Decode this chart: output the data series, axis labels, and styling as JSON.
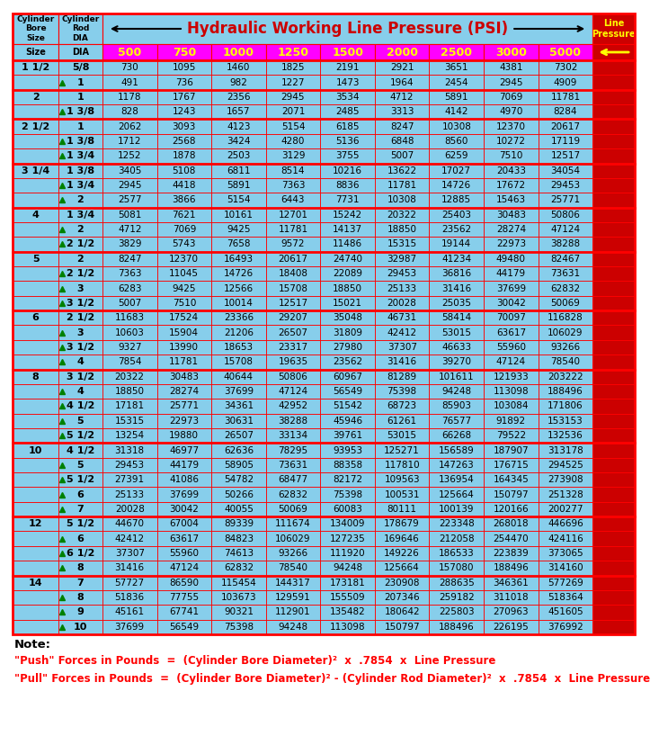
{
  "title": "Hydraulic Working Line Pressure (PSI)",
  "pressures": [
    "500",
    "750",
    "1000",
    "1250",
    "1500",
    "2000",
    "2500",
    "3000",
    "5000"
  ],
  "rows": [
    [
      "1 1/2",
      "5/8",
      730,
      1095,
      1460,
      1825,
      2191,
      2921,
      3651,
      4381,
      7302
    ],
    [
      "",
      "1",
      491,
      736,
      982,
      1227,
      1473,
      1964,
      2454,
      2945,
      4909
    ],
    [
      "2",
      "1",
      1178,
      1767,
      2356,
      2945,
      3534,
      4712,
      5891,
      7069,
      11781
    ],
    [
      "",
      "1 3/8",
      828,
      1243,
      1657,
      2071,
      2485,
      3313,
      4142,
      4970,
      8284
    ],
    [
      "2 1/2",
      "1",
      2062,
      3093,
      4123,
      5154,
      6185,
      8247,
      10308,
      12370,
      20617
    ],
    [
      "",
      "1 3/8",
      1712,
      2568,
      3424,
      4280,
      5136,
      6848,
      8560,
      10272,
      17119
    ],
    [
      "",
      "1 3/4",
      1252,
      1878,
      2503,
      3129,
      3755,
      5007,
      6259,
      7510,
      12517
    ],
    [
      "3 1/4",
      "1 3/8",
      3405,
      5108,
      6811,
      8514,
      10216,
      13622,
      17027,
      20433,
      34054
    ],
    [
      "",
      "1 3/4",
      2945,
      4418,
      5891,
      7363,
      8836,
      11781,
      14726,
      17672,
      29453
    ],
    [
      "",
      "2",
      2577,
      3866,
      5154,
      6443,
      7731,
      10308,
      12885,
      15463,
      25771
    ],
    [
      "4",
      "1 3/4",
      5081,
      7621,
      10161,
      12701,
      15242,
      20322,
      25403,
      30483,
      50806
    ],
    [
      "",
      "2",
      4712,
      7069,
      9425,
      11781,
      14137,
      18850,
      23562,
      28274,
      47124
    ],
    [
      "",
      "2 1/2",
      3829,
      5743,
      7658,
      9572,
      11486,
      15315,
      19144,
      22973,
      38288
    ],
    [
      "5",
      "2",
      8247,
      12370,
      16493,
      20617,
      24740,
      32987,
      41234,
      49480,
      82467
    ],
    [
      "",
      "2 1/2",
      7363,
      11045,
      14726,
      18408,
      22089,
      29453,
      36816,
      44179,
      73631
    ],
    [
      "",
      "3",
      6283,
      9425,
      12566,
      15708,
      18850,
      25133,
      31416,
      37699,
      62832
    ],
    [
      "",
      "3 1/2",
      5007,
      7510,
      10014,
      12517,
      15021,
      20028,
      25035,
      30042,
      50069
    ],
    [
      "6",
      "2 1/2",
      11683,
      17524,
      23366,
      29207,
      35048,
      46731,
      58414,
      70097,
      116828
    ],
    [
      "",
      "3",
      10603,
      15904,
      21206,
      26507,
      31809,
      42412,
      53015,
      63617,
      106029
    ],
    [
      "",
      "3 1/2",
      9327,
      13990,
      18653,
      23317,
      27980,
      37307,
      46633,
      55960,
      93266
    ],
    [
      "",
      "4",
      7854,
      11781,
      15708,
      19635,
      23562,
      31416,
      39270,
      47124,
      78540
    ],
    [
      "8",
      "3 1/2",
      20322,
      30483,
      40644,
      50806,
      60967,
      81289,
      101611,
      121933,
      203222
    ],
    [
      "",
      "4",
      18850,
      28274,
      37699,
      47124,
      56549,
      75398,
      94248,
      113098,
      188496
    ],
    [
      "",
      "4 1/2",
      17181,
      25771,
      34361,
      42952,
      51542,
      68723,
      85903,
      103084,
      171806
    ],
    [
      "",
      "5",
      15315,
      22973,
      30631,
      38288,
      45946,
      61261,
      76577,
      91892,
      153153
    ],
    [
      "",
      "5 1/2",
      13254,
      19880,
      26507,
      33134,
      39761,
      53015,
      66268,
      79522,
      132536
    ],
    [
      "10",
      "4 1/2",
      31318,
      46977,
      62636,
      78295,
      93953,
      125271,
      156589,
      187907,
      313178
    ],
    [
      "",
      "5",
      29453,
      44179,
      58905,
      73631,
      88358,
      117810,
      147263,
      176715,
      294525
    ],
    [
      "",
      "5 1/2",
      27391,
      41086,
      54782,
      68477,
      82172,
      109563,
      136954,
      164345,
      273908
    ],
    [
      "",
      "6",
      25133,
      37699,
      50266,
      62832,
      75398,
      100531,
      125664,
      150797,
      251328
    ],
    [
      "",
      "7",
      20028,
      30042,
      40055,
      50069,
      60083,
      80111,
      100139,
      120166,
      200277
    ],
    [
      "12",
      "5 1/2",
      44670,
      67004,
      89339,
      111674,
      134009,
      178679,
      223348,
      268018,
      446696
    ],
    [
      "",
      "6",
      42412,
      63617,
      84823,
      106029,
      127235,
      169646,
      212058,
      254470,
      424116
    ],
    [
      "",
      "6 1/2",
      37307,
      55960,
      74613,
      93266,
      111920,
      149226,
      186533,
      223839,
      373065
    ],
    [
      "",
      "8",
      31416,
      47124,
      62832,
      78540,
      94248,
      125664,
      157080,
      188496,
      314160
    ],
    [
      "14",
      "7",
      57727,
      86590,
      115454,
      144317,
      173181,
      230908,
      288635,
      346361,
      577269
    ],
    [
      "",
      "8",
      51836,
      77755,
      103673,
      129591,
      155509,
      207346,
      259182,
      311018,
      518364
    ],
    [
      "",
      "9",
      45161,
      67741,
      90321,
      112901,
      135482,
      180642,
      225803,
      270963,
      451605
    ],
    [
      "",
      "10",
      37699,
      56549,
      75398,
      94248,
      113098,
      150797,
      188496,
      226195,
      376992
    ]
  ],
  "group_starts": [
    0,
    2,
    4,
    7,
    10,
    13,
    17,
    21,
    26,
    31,
    35
  ],
  "bg_color": "#87CEEB",
  "header_psi_bg": "#FF00FF",
  "header_psi_fg": "#FFFF00",
  "border_color": "#FF0000",
  "last_col_bg": "#CC0000",
  "last_col_fg": "#FFFF00",
  "title_color": "#CC0000",
  "note_text": "Note:",
  "formula1": "\"Push\" Forces in Pounds  =  (Cylinder Bore Diameter)²  x  .7854  x  Line Pressure",
  "formula2": "\"Pull\" Forces in Pounds  =  (Cylinder Bore Diameter)² - (Cylinder Rod Diameter)²  x  .7854  x  Line Pressure"
}
